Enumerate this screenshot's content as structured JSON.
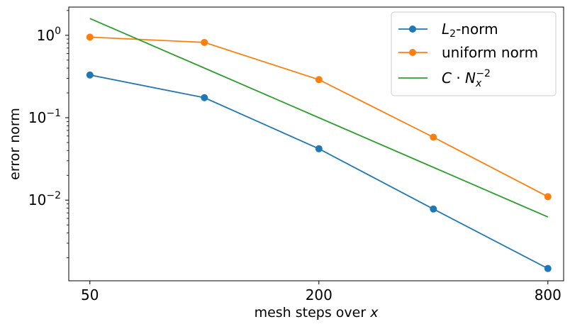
{
  "chart_data": {
    "type": "line",
    "xscale": "log2",
    "yscale": "log",
    "x": [
      50,
      100,
      200,
      400,
      800
    ],
    "xlim": [
      44,
      880
    ],
    "ylim": [
      0.00105,
      2.2
    ],
    "xticks": [
      {
        "value": 50,
        "label": "50"
      },
      {
        "value": 200,
        "label": "200"
      },
      {
        "value": 800,
        "label": "800"
      }
    ],
    "yticks": [
      {
        "value": 1,
        "base": "10",
        "exp": "0"
      },
      {
        "value": 0.1,
        "base": "10",
        "exp": "−1"
      },
      {
        "value": 0.01,
        "base": "10",
        "exp": "−2"
      }
    ],
    "xlabel": {
      "text": "mesh steps over ",
      "var": "x"
    },
    "ylabel": "error norm",
    "grid": false,
    "legend_position": "top-right",
    "series": [
      {
        "key": "l2",
        "name": "L2-norm",
        "legend": {
          "main": "L",
          "sub": "2",
          "rest": "-norm"
        },
        "color": "#1f77b4",
        "marker": "circle",
        "values": [
          0.33,
          0.175,
          0.042,
          0.0078,
          0.00148
        ]
      },
      {
        "key": "uni",
        "name": "uniform norm",
        "legend": {
          "main": "uniform norm"
        },
        "color": "#ff7f0e",
        "marker": "circle",
        "values": [
          0.95,
          0.82,
          0.29,
          0.058,
          0.011
        ]
      },
      {
        "key": "ref",
        "name": "C · Nx^-2",
        "legend": {
          "c": "C",
          "dot": " · ",
          "n": "N",
          "sub": "x",
          "sup": "−2"
        },
        "color": "#2ca02c",
        "marker": "none",
        "values": [
          1.6,
          0.4,
          0.1,
          0.025,
          0.00625
        ]
      }
    ]
  }
}
